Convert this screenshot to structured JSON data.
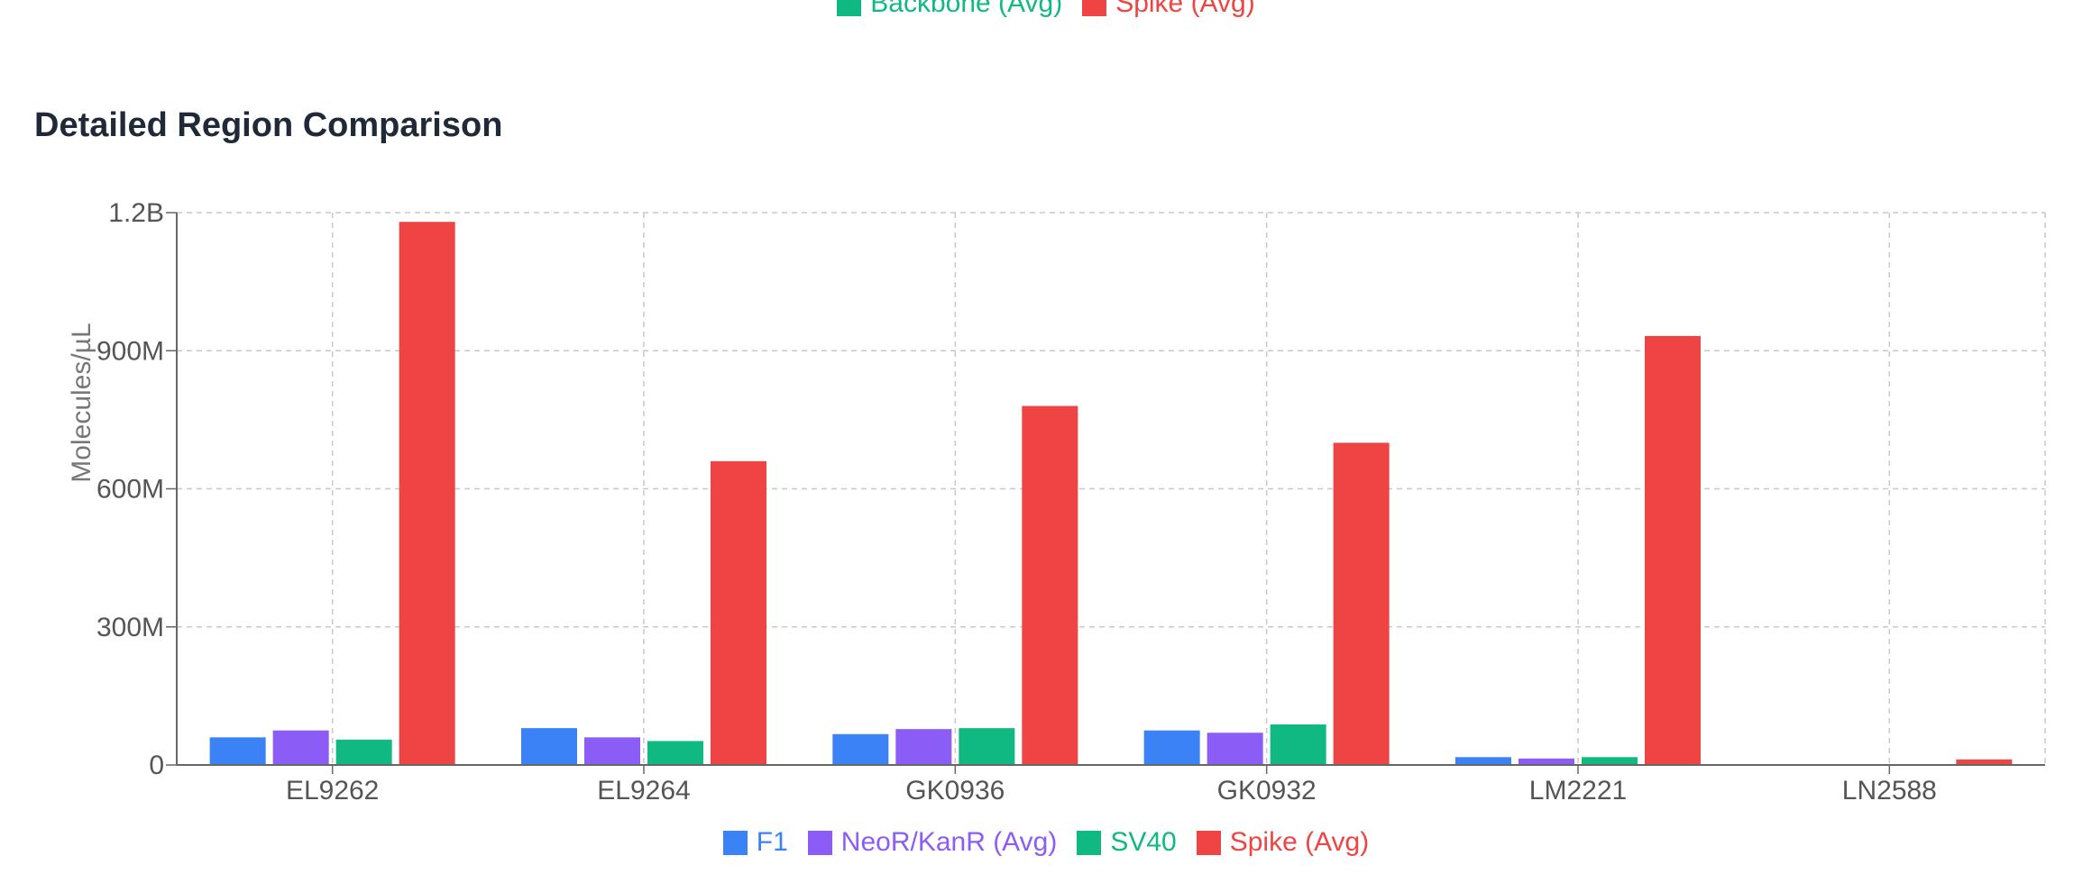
{
  "top_legend": {
    "items": [
      {
        "label": "Backbone (Avg)",
        "color": "#10b981"
      },
      {
        "label": "Spike (Avg)",
        "color": "#ef4444"
      }
    ]
  },
  "section": {
    "title": "Detailed Region Comparison"
  },
  "chart_data": {
    "type": "bar",
    "title": "",
    "xlabel": "",
    "ylabel": "Molecules/µL",
    "categories": [
      "EL9262",
      "EL9264",
      "GK0936",
      "GK0932",
      "LM2221",
      "LN2588"
    ],
    "ylim": [
      0,
      1200000000
    ],
    "yticks": [
      {
        "value": 0,
        "label": "0"
      },
      {
        "value": 300000000,
        "label": "300M"
      },
      {
        "value": 600000000,
        "label": "600M"
      },
      {
        "value": 900000000,
        "label": "900M"
      },
      {
        "value": 1200000000,
        "label": "1.2B"
      }
    ],
    "grid": true,
    "legend_position": "bottom",
    "series": [
      {
        "name": "F1",
        "color": "#3b82f6",
        "values": [
          60000000,
          80000000,
          67000000,
          75000000,
          17000000,
          0
        ]
      },
      {
        "name": "NeoR/KanR (Avg)",
        "color": "#8b5cf6",
        "values": [
          75000000,
          60000000,
          78000000,
          70000000,
          14000000,
          0
        ]
      },
      {
        "name": "SV40",
        "color": "#10b981",
        "values": [
          55000000,
          52000000,
          80000000,
          88000000,
          17000000,
          0
        ]
      },
      {
        "name": "Spike (Avg)",
        "color": "#ef4444",
        "values": [
          1180000000,
          660000000,
          780000000,
          700000000,
          932000000,
          12000000
        ]
      }
    ]
  }
}
